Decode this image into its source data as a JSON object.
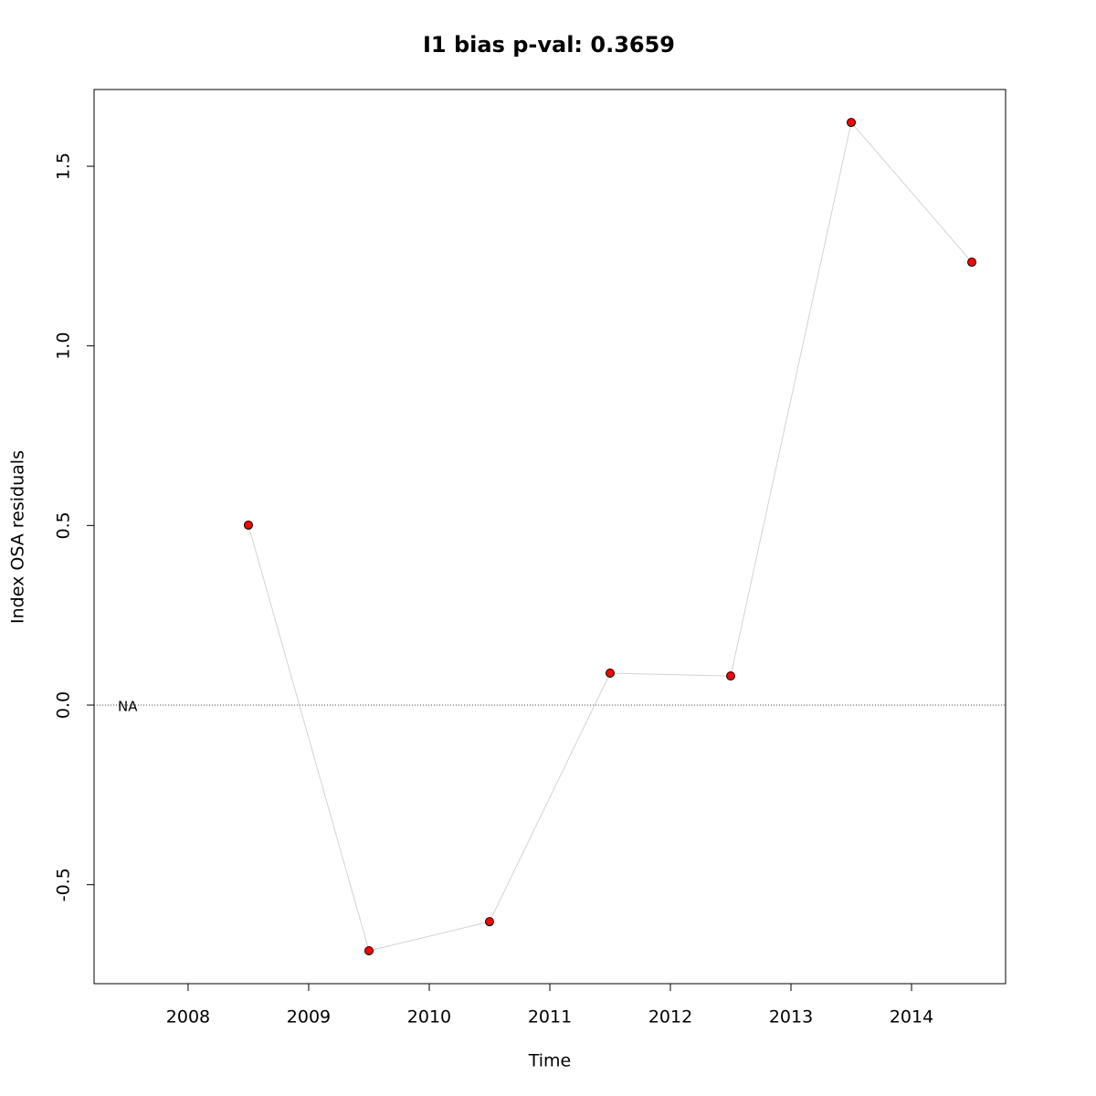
{
  "chart_data": {
    "type": "line",
    "title": "I1 bias p-val: 0.3659",
    "title_color": "#228b22",
    "x_label": "Time",
    "y_label": "Index OSA residuals",
    "x": [
      2008.5,
      2009.5,
      2010.5,
      2011.5,
      2012.5,
      2013.5,
      2014.5
    ],
    "series": [
      {
        "name": "I1",
        "line_color": "#d3d3d3",
        "color": "#ff0000",
        "values": [
          0.501,
          -0.684,
          -0.603,
          0.089,
          0.081,
          1.622,
          1.233
        ]
      }
    ],
    "xlim": [
      2007.22,
      2014.78
    ],
    "xticks": [
      2008,
      2009,
      2010,
      2011,
      2012,
      2013,
      2014
    ],
    "ylim": [
      -0.7755,
      1.7137
    ],
    "yticks": [
      -0.5,
      {
        "value": 0,
        "label": "0.0"
      },
      0.5,
      {
        "value": 1,
        "label": "1.0"
      },
      1.5
    ],
    "hline": 0,
    "annotation": "NA"
  }
}
